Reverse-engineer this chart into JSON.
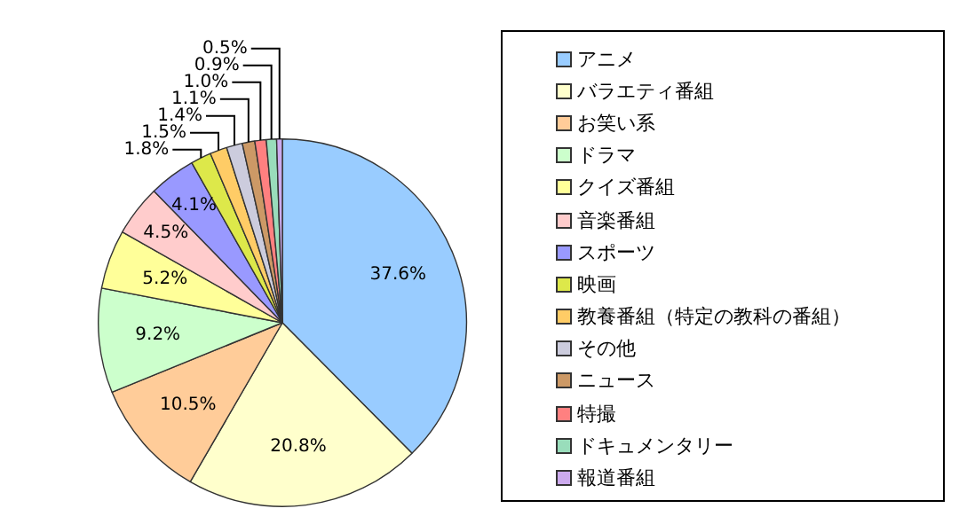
{
  "chart_data": {
    "type": "pie",
    "categories": [
      "アニメ",
      "バラエティ番組",
      "お笑い系",
      "ドラマ",
      "クイズ番組",
      "音楽番組",
      "スポーツ",
      "映画",
      "教養番組（特定の教科の番組）",
      "その他",
      "ニュース",
      "特撮",
      "ドキュメンタリー",
      "報道番組"
    ],
    "values": [
      37.6,
      20.8,
      10.5,
      9.2,
      5.2,
      4.5,
      4.1,
      1.8,
      1.5,
      1.4,
      1.1,
      1.0,
      0.9,
      0.5
    ],
    "value_labels": [
      "37.6%",
      "20.8%",
      "10.5%",
      "9.2%",
      "5.2%",
      "4.5%",
      "4.1%",
      "1.8%",
      "1.5%",
      "1.4%",
      "1.1%",
      "1.0%",
      "0.9%",
      "0.5%"
    ],
    "colors": [
      "#99ccff",
      "#ffffcc",
      "#ffcc99",
      "#ccffcc",
      "#ffff99",
      "#ffcccc",
      "#9999ff",
      "#dde84a",
      "#ffcc66",
      "#ccccdd",
      "#cc9966",
      "#ff8080",
      "#99ddbb",
      "#ccaaee"
    ],
    "legend": "right"
  }
}
